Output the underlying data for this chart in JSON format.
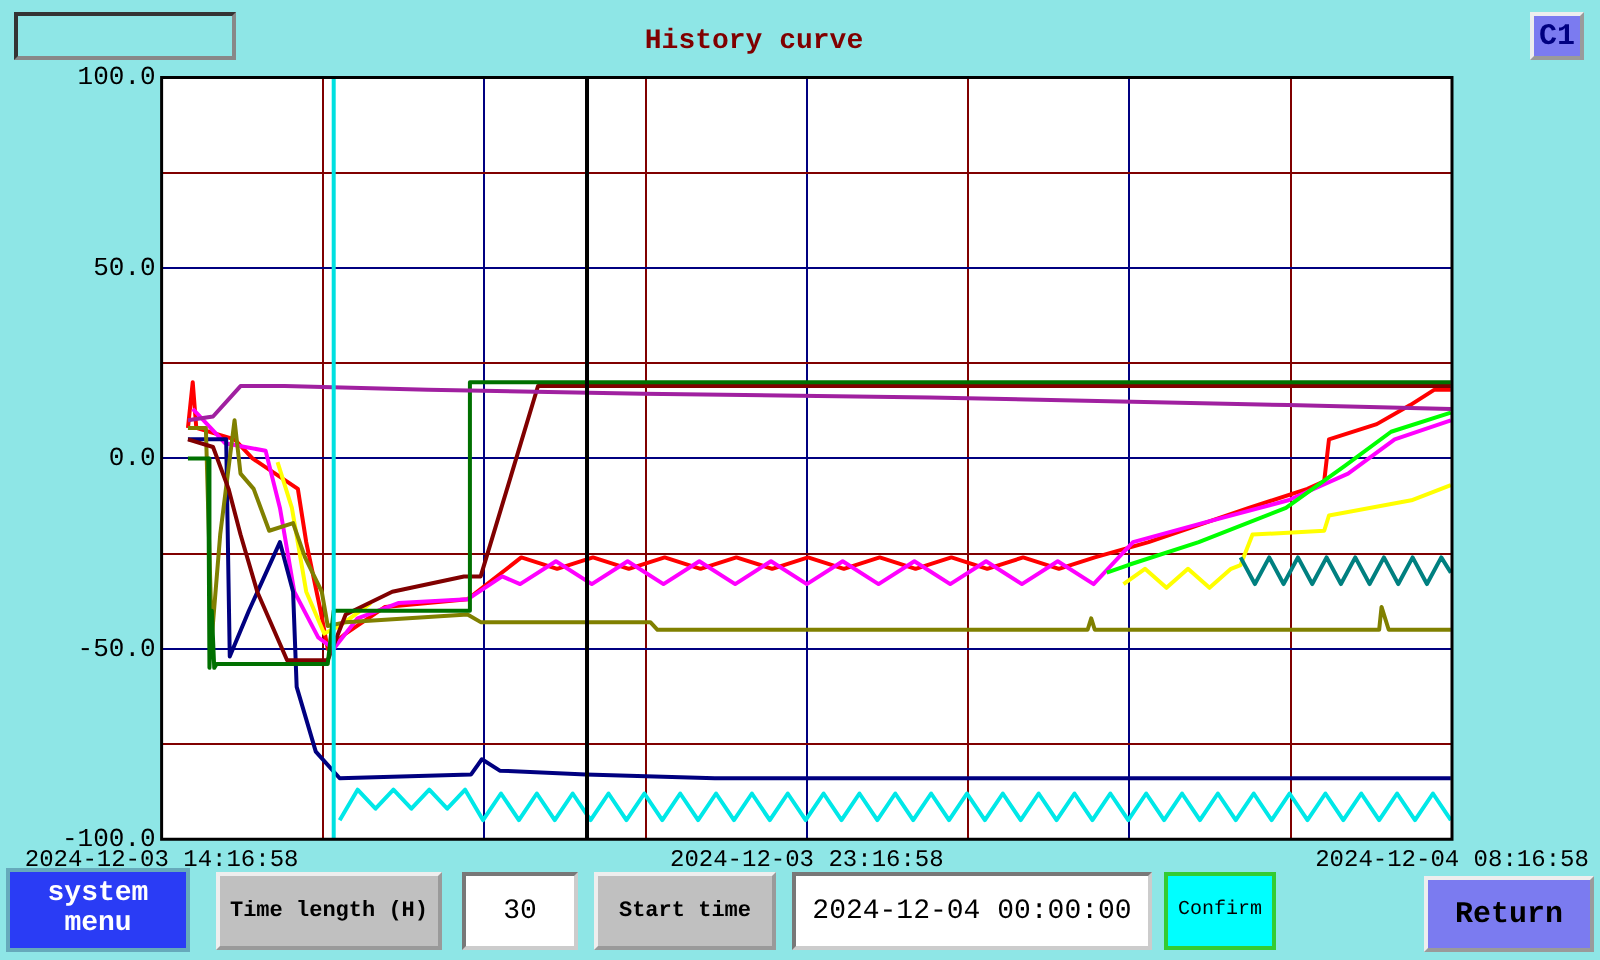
{
  "chart_data": {
    "type": "line",
    "title": "History curve",
    "annotations": [
      "C1",
      "system menu",
      "Time length (H)",
      "30",
      "Start time",
      "2024-12-04 00:00:00",
      "Confirm",
      "Return"
    ],
    "xlim": [
      "2024-12-03T14:16:58",
      "2024-12-04T08:16:58"
    ],
    "xticks": [
      {
        "value": "2024-12-03T14:16:58",
        "label": "2024-12-03 14:16:58"
      },
      {
        "value": "2024-12-03T16:31:58",
        "label": null
      },
      {
        "value": "2024-12-03T18:46:58",
        "label": null
      },
      {
        "value": "2024-12-03T21:01:58",
        "label": null
      },
      {
        "value": "2024-12-03T23:16:58",
        "label": "2024-12-03 23:16:58"
      },
      {
        "value": "2024-12-04T01:31:58",
        "label": null
      },
      {
        "value": "2024-12-04T03:46:58",
        "label": null
      },
      {
        "value": "2024-12-04T06:01:58",
        "label": null
      },
      {
        "value": "2024-12-04T08:16:58",
        "label": "2024-12-04 08:16:58"
      }
    ],
    "ylim": [
      -100,
      100
    ],
    "yticks": [
      {
        "value": -100,
        "label": "-100.0"
      },
      {
        "value": -75,
        "label": null
      },
      {
        "value": -50,
        "label": "-50.0"
      },
      {
        "value": -25,
        "label": null
      },
      {
        "value": 0,
        "label": "0.0"
      },
      {
        "value": 25,
        "label": null
      },
      {
        "value": 50,
        "label": "50.0"
      },
      {
        "value": 75,
        "label": null
      },
      {
        "value": 100,
        "label": "100.0"
      }
    ],
    "grid": true,
    "legend": false,
    "marker": "none",
    "ref_lines": [
      {
        "axis": "x",
        "value": "2024-12-03T16:41",
        "color": "#00e0e0"
      },
      {
        "axis": "x",
        "value": "2024-12-03T20:13",
        "color": "#000000"
      }
    ],
    "series": [
      {
        "color": "#a020a0",
        "x": [
          "2024-12-03T14:39",
          "2024-12-03T15:00",
          "2024-12-03T15:23",
          "2024-12-03T16:00",
          "2024-12-03T18:00",
          "2024-12-03T21:00",
          "2024-12-04T01:00",
          "2024-12-04T06:00",
          "2024-12-04T08:16"
        ],
        "values": [
          10,
          11,
          19,
          19,
          18,
          17,
          16,
          14,
          13
        ]
      },
      {
        "color": "#007000",
        "x": [
          "2024-12-03T14:39",
          "2024-12-03T14:56",
          "2024-12-03T14:57",
          "2024-12-03T14:59",
          "2024-12-03T15:01",
          "2024-12-03T15:03",
          "2024-12-03T16:36",
          "2024-12-03T16:41",
          "2024-12-03T18:34",
          "2024-12-03T18:35",
          "2024-12-04T08:16"
        ],
        "values": [
          0,
          0,
          -55,
          -40,
          -55,
          -54,
          -54,
          -40,
          -40,
          20,
          20
        ]
      },
      {
        "color": "#800000",
        "x": [
          "2024-12-03T14:39",
          "2024-12-03T15:00",
          "2024-12-03T15:13",
          "2024-12-03T15:23",
          "2024-12-03T15:37",
          "2024-12-03T16:02",
          "2024-12-03T16:36",
          "2024-12-03T16:51",
          "2024-12-03T17:30",
          "2024-12-03T18:30",
          "2024-12-03T18:44",
          "2024-12-03T19:32",
          "2024-12-04T08:16"
        ],
        "values": [
          5,
          3,
          -8,
          -20,
          -35,
          -53,
          -53,
          -41,
          -35,
          -31,
          -31,
          19,
          19
        ]
      },
      {
        "color": "#808000",
        "x": [
          "2024-12-03T14:39",
          "2024-12-03T14:54",
          "2024-12-03T14:59",
          "2024-12-03T15:06",
          "2024-12-03T15:18",
          "2024-12-03T15:23",
          "2024-12-03T15:34",
          "2024-12-03T15:47",
          "2024-12-03T16:07",
          "2024-12-03T16:17",
          "2024-12-03T16:31",
          "2024-12-03T16:36",
          "2024-12-03T16:51",
          "2024-12-03T18:33",
          "2024-12-03T18:44",
          "2024-12-03T21:06",
          "2024-12-03T21:12",
          "2024-12-04T03:12",
          "2024-12-04T03:15",
          "2024-12-04T03:18",
          "2024-12-04T07:16",
          "2024-12-04T07:18",
          "2024-12-04T07:24",
          "2024-12-04T08:16"
        ],
        "values": [
          8,
          8,
          -47,
          -20,
          10,
          -4,
          -8,
          -19,
          -17,
          -26,
          -35,
          -44,
          -43,
          -41,
          -43,
          -43,
          -45,
          -45,
          -42,
          -45,
          -45,
          -39,
          -45,
          -45
        ]
      },
      {
        "color": "#000080",
        "x": [
          "2024-12-03T14:39",
          "2024-12-03T15:11",
          "2024-12-03T15:14",
          "2024-12-03T15:30",
          "2024-12-03T15:56",
          "2024-12-03T16:07",
          "2024-12-03T16:10",
          "2024-12-03T16:26",
          "2024-12-03T16:46",
          "2024-12-03T18:36",
          "2024-12-03T18:45",
          "2024-12-03T19:00",
          "2024-12-03T20:12",
          "2024-12-03T22:00",
          "2024-12-04T08:16"
        ],
        "values": [
          5,
          5,
          -52,
          -40,
          -22,
          -35,
          -60,
          -77,
          -84,
          -83,
          -79,
          -82,
          -83,
          -84,
          -84
        ]
      },
      {
        "color": "#00e8e8",
        "x": [
          "2024-12-03T16:46",
          "2024-12-03T17:01",
          "2024-12-03T17:16",
          "2024-12-03T17:31",
          "2024-12-03T17:46",
          "2024-12-03T18:01",
          "2024-12-03T18:16",
          "2024-12-03T18:31",
          "2024-12-03T18:46",
          "2024-12-03T19:01",
          "2024-12-03T19:16",
          "2024-12-03T19:31",
          "2024-12-03T19:46",
          "2024-12-03T20:01",
          "2024-12-03T20:16",
          "2024-12-03T20:31",
          "2024-12-03T20:46",
          "2024-12-03T21:01",
          "2024-12-03T21:16",
          "2024-12-03T21:31",
          "2024-12-03T21:46",
          "2024-12-03T22:01",
          "2024-12-03T22:16",
          "2024-12-03T22:31",
          "2024-12-03T22:46",
          "2024-12-03T23:01",
          "2024-12-03T23:16",
          "2024-12-03T23:31",
          "2024-12-03T23:46",
          "2024-12-04T00:01",
          "2024-12-04T00:16",
          "2024-12-04T00:31",
          "2024-12-04T00:46",
          "2024-12-04T01:01",
          "2024-12-04T01:16",
          "2024-12-04T01:31",
          "2024-12-04T01:46",
          "2024-12-04T02:01",
          "2024-12-04T02:16",
          "2024-12-04T02:31",
          "2024-12-04T02:46",
          "2024-12-04T03:01",
          "2024-12-04T03:16",
          "2024-12-04T03:31",
          "2024-12-04T03:46",
          "2024-12-04T04:01",
          "2024-12-04T04:16",
          "2024-12-04T04:31",
          "2024-12-04T04:46",
          "2024-12-04T05:01",
          "2024-12-04T05:16",
          "2024-12-04T05:31",
          "2024-12-04T05:46",
          "2024-12-04T06:01",
          "2024-12-04T06:16",
          "2024-12-04T06:31",
          "2024-12-04T06:46",
          "2024-12-04T07:01",
          "2024-12-04T07:16",
          "2024-12-04T07:31",
          "2024-12-04T07:46",
          "2024-12-04T08:01",
          "2024-12-04T08:16"
        ],
        "values": [
          -95,
          -87,
          -92,
          -87,
          -92,
          -87,
          -92,
          -87,
          -95,
          -88,
          -95,
          -88,
          -95,
          -88,
          -95,
          -88,
          -95,
          -88,
          -95,
          -88,
          -95,
          -88,
          -95,
          -88,
          -95,
          -88,
          -95,
          -88,
          -95,
          -88,
          -95,
          -88,
          -95,
          -88,
          -95,
          -88,
          -95,
          -88,
          -95,
          -88,
          -95,
          -88,
          -95,
          -88,
          -95,
          -88,
          -95,
          -88,
          -95,
          -88,
          -95,
          -88,
          -95,
          -88,
          -95,
          -88,
          -95,
          -88,
          -95,
          -88,
          -95,
          -88,
          -95
        ]
      },
      {
        "color": "#008080",
        "x": [
          "2024-12-04T05:20",
          "2024-12-04T05:32",
          "2024-12-04T05:44",
          "2024-12-04T05:56",
          "2024-12-04T06:08",
          "2024-12-04T06:20",
          "2024-12-04T06:32",
          "2024-12-04T06:44",
          "2024-12-04T06:56",
          "2024-12-04T07:08",
          "2024-12-04T07:20",
          "2024-12-04T07:32",
          "2024-12-04T07:44",
          "2024-12-04T07:56",
          "2024-12-04T08:08",
          "2024-12-04T08:16"
        ],
        "values": [
          -26,
          -33,
          -26,
          -33,
          -26,
          -33,
          -26,
          -33,
          -26,
          -33,
          -26,
          -33,
          -26,
          -33,
          -26,
          -30
        ]
      },
      {
        "color": "#ffff00",
        "x": [
          "2024-12-03T15:54",
          "2024-12-03T16:06",
          "2024-12-03T16:18",
          "2024-12-03T16:33",
          "2024-12-03T16:46",
          "2024-12-03T17:12",
          "2024-12-03T22:00",
          "2024-12-04T03:42",
          "2024-12-04T04:00",
          "2024-12-04T04:18",
          "2024-12-04T04:36",
          "2024-12-04T04:54",
          "2024-12-04T05:12",
          "2024-12-04T05:20",
          "2024-12-04T05:30",
          "2024-12-04T06:30",
          "2024-12-04T06:34",
          "2024-12-04T07:43",
          "2024-12-04T08:16"
        ],
        "values": [
          -1,
          -13,
          -35,
          -46,
          -44,
          -38,
          null,
          -33,
          -29,
          -34,
          -29,
          -34,
          -29,
          -28,
          -20,
          -19,
          -15,
          -11,
          -7
        ]
      },
      {
        "color": "#00ff00",
        "x": [
          "2024-12-04T03:28",
          "2024-12-04T03:46",
          "2024-12-04T04:45",
          "2024-12-04T05:58",
          "2024-12-04T06:47",
          "2024-12-04T07:26",
          "2024-12-04T08:16"
        ],
        "values": [
          -30,
          -28,
          -22,
          -13,
          -2,
          7,
          12
        ]
      },
      {
        "color": "#ff00ff",
        "x": [
          "2024-12-03T14:43",
          "2024-12-03T15:10",
          "2024-12-03T15:44",
          "2024-12-03T15:56",
          "2024-12-03T16:08",
          "2024-12-03T16:28",
          "2024-12-03T16:41",
          "2024-12-03T17:01",
          "2024-12-03T17:35",
          "2024-12-03T18:33",
          "2024-12-03T19:02",
          "2024-12-03T19:17",
          "2024-12-03T19:47",
          "2024-12-03T20:17",
          "2024-12-03T20:47",
          "2024-12-03T21:17",
          "2024-12-03T21:47",
          "2024-12-03T22:17",
          "2024-12-03T22:47",
          "2024-12-03T23:17",
          "2024-12-03T23:47",
          "2024-12-04T00:17",
          "2024-12-04T00:47",
          "2024-12-04T01:17",
          "2024-12-04T01:47",
          "2024-12-04T02:17",
          "2024-12-04T02:47",
          "2024-12-04T03:17",
          "2024-12-04T03:50",
          "2024-12-04T04:48",
          "2024-12-04T06:00",
          "2024-12-04T06:50",
          "2024-12-04T07:29",
          "2024-12-04T08:16"
        ],
        "values": [
          13,
          4,
          2,
          -13,
          -35,
          -47,
          -50,
          -42,
          -38,
          -37,
          -31,
          -33,
          -27,
          -33,
          -27,
          -33,
          -27,
          -33,
          -27,
          -33,
          -27,
          -33,
          -27,
          -33,
          -27,
          -33,
          -27,
          -33,
          -22,
          -17,
          -11,
          -4,
          5,
          10
        ]
      },
      {
        "color": "#ff0000",
        "x": [
          "2024-12-03T14:39",
          "2024-12-03T14:43",
          "2024-12-03T14:46",
          "2024-12-03T15:18",
          "2024-12-03T15:33",
          "2024-12-03T16:11",
          "2024-12-03T16:18",
          "2024-12-03T16:30",
          "2024-12-03T16:36",
          "2024-12-03T16:51",
          "2024-12-03T17:24",
          "2024-12-03T18:33",
          "2024-12-03T19:18",
          "2024-12-03T19:48",
          "2024-12-03T20:18",
          "2024-12-03T20:48",
          "2024-12-03T21:18",
          "2024-12-03T21:48",
          "2024-12-03T22:18",
          "2024-12-03T22:48",
          "2024-12-03T23:18",
          "2024-12-03T23:48",
          "2024-12-04T00:18",
          "2024-12-04T00:48",
          "2024-12-04T01:18",
          "2024-12-04T01:48",
          "2024-12-04T02:18",
          "2024-12-04T02:48",
          "2024-12-04T03:18",
          "2024-12-04T04:03",
          "2024-12-04T05:27",
          "2024-12-04T06:16",
          "2024-12-04T06:30",
          "2024-12-04T06:34",
          "2024-12-04T07:14",
          "2024-12-04T07:42",
          "2024-12-04T08:02",
          "2024-12-04T08:16"
        ],
        "values": [
          8,
          20,
          8,
          5,
          0,
          -8,
          -22,
          -40,
          -50,
          -46,
          -39,
          -37,
          -26,
          -29,
          -26,
          -29,
          -26,
          -29,
          -26,
          -29,
          -26,
          -29,
          -26,
          -29,
          -26,
          -29,
          -26,
          -29,
          -26,
          -22,
          -13,
          -8,
          -6,
          5,
          9,
          14,
          18,
          18
        ]
      }
    ]
  }
}
